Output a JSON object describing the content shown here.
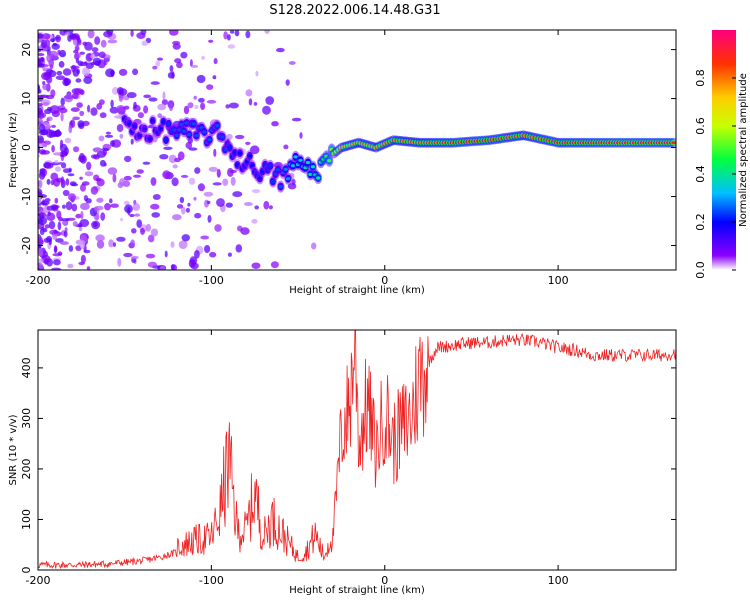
{
  "title": "S128.2022.006.14.48.G31",
  "chart_data": [
    {
      "type": "heatmap",
      "xlabel": "Height of straight line (km)",
      "ylabel": "Frequency (Hz)",
      "xlim": [
        -200,
        168
      ],
      "ylim": [
        -25,
        24
      ],
      "x_ticks": [
        -200,
        -100,
        0,
        100
      ],
      "y_ticks": [
        -20,
        -10,
        0,
        10,
        20
      ],
      "x_tick_labels": [
        "-200",
        "-100",
        "0",
        "100"
      ],
      "y_tick_labels": [
        "-20",
        "-10",
        "0",
        "10",
        "20"
      ],
      "colorbar": {
        "label": "Normalized spectral amplitude",
        "range": [
          0,
          1
        ],
        "ticks": [
          0.0,
          0.2,
          0.4,
          0.6,
          0.8
        ],
        "tick_labels": [
          "0.0",
          "0.2",
          "0.4",
          "0.6",
          "0.8"
        ],
        "colormap": [
          "#ffffff",
          "#8a00ff",
          "#0000ff",
          "#00c0ff",
          "#00ff40",
          "#c8ff00",
          "#ffcc00",
          "#ff3000",
          "#ff0080"
        ]
      },
      "ridge": [
        {
          "x": -150,
          "y": 4.5,
          "amp": 0.2
        },
        {
          "x": -140,
          "y": 3.5,
          "amp": 0.15
        },
        {
          "x": -120,
          "y": 3.5,
          "amp": 0.25
        },
        {
          "x": -110,
          "y": 3.0,
          "amp": 0.25
        },
        {
          "x": -95,
          "y": 2.5,
          "amp": 0.25
        },
        {
          "x": -85,
          "y": -2.0,
          "amp": 0.2
        },
        {
          "x": -75,
          "y": -4.0,
          "amp": 0.2
        },
        {
          "x": -60,
          "y": -6.5,
          "amp": 0.25
        },
        {
          "x": -50,
          "y": -3.0,
          "amp": 0.35
        },
        {
          "x": -40,
          "y": -5.0,
          "amp": 0.4
        },
        {
          "x": -32,
          "y": -2.0,
          "amp": 0.5
        },
        {
          "x": -25,
          "y": 0.0,
          "amp": 0.7
        },
        {
          "x": -15,
          "y": 1.0,
          "amp": 0.75
        },
        {
          "x": -5,
          "y": 0.0,
          "amp": 0.75
        },
        {
          "x": 5,
          "y": 1.5,
          "amp": 0.8
        },
        {
          "x": 20,
          "y": 1.0,
          "amp": 0.8
        },
        {
          "x": 40,
          "y": 1.0,
          "amp": 0.85
        },
        {
          "x": 60,
          "y": 1.5,
          "amp": 0.85
        },
        {
          "x": 80,
          "y": 2.5,
          "amp": 0.8
        },
        {
          "x": 100,
          "y": 1.0,
          "amp": 0.85
        },
        {
          "x": 130,
          "y": 1.0,
          "amp": 0.9
        },
        {
          "x": 168,
          "y": 1.0,
          "amp": 0.9
        }
      ]
    },
    {
      "type": "line",
      "xlabel": "Height of straight line (km)",
      "ylabel": "SNR (10 * v/v)",
      "xlim": [
        -200,
        168
      ],
      "ylim": [
        0,
        475
      ],
      "x_ticks": [
        -200,
        -100,
        0,
        100
      ],
      "y_ticks": [
        0,
        100,
        200,
        300,
        400
      ],
      "x_tick_labels": [
        "-200",
        "-100",
        "0",
        "100"
      ],
      "y_tick_labels": [
        "0",
        "100",
        "200",
        "300",
        "400"
      ],
      "color": "#ee2222",
      "series": [
        {
          "x": [
            -200,
            -180,
            -160,
            -140,
            -130,
            -120,
            -110,
            -100,
            -95,
            -90,
            -85,
            -80,
            -75,
            -70,
            -65,
            -60,
            -55,
            -50,
            -45,
            -40,
            -35,
            -30,
            -25,
            -20,
            -17,
            -15,
            -10,
            -5,
            0,
            5,
            10,
            15,
            20,
            25,
            30,
            40,
            50,
            60,
            70,
            80,
            90,
            100,
            110,
            120,
            130,
            140,
            150,
            160,
            168
          ],
          "y": [
            10,
            10,
            12,
            18,
            25,
            35,
            45,
            50,
            90,
            170,
            60,
            60,
            120,
            50,
            80,
            60,
            40,
            20,
            30,
            55,
            20,
            60,
            270,
            330,
            470,
            250,
            330,
            230,
            320,
            250,
            280,
            300,
            380,
            410,
            440,
            445,
            450,
            450,
            455,
            455,
            450,
            440,
            435,
            425,
            425,
            425,
            425,
            425,
            430
          ]
        }
      ]
    }
  ]
}
